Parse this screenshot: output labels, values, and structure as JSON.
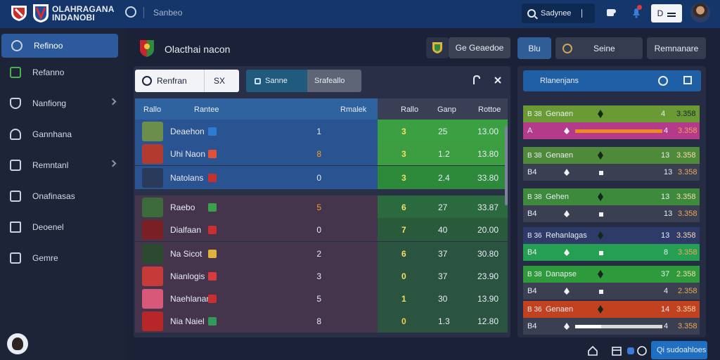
{
  "app": {
    "brand_line1": "OLAHRAGANA",
    "brand_line2": "INDANOBI",
    "search_hint": "Sanbeo",
    "search_label": "Sadynee",
    "user_btn": "D"
  },
  "sidebar": {
    "items": [
      {
        "label": "Refinoo",
        "active": true,
        "icon": "globe-icon"
      },
      {
        "label": "Refanno",
        "icon": "trophy-icon"
      },
      {
        "label": "Nanfiong",
        "icon": "shield-icon",
        "chev": true
      },
      {
        "label": "Gannhana",
        "icon": "person-icon"
      },
      {
        "label": "Remntanl",
        "icon": "document-icon",
        "chev": true
      },
      {
        "label": "Onafinasas",
        "icon": "grid-icon"
      },
      {
        "label": "Deoenel",
        "icon": "building-icon"
      },
      {
        "label": "Gemre",
        "icon": "list-icon"
      }
    ]
  },
  "header": {
    "team_title": "Olacthai nacon",
    "btn_schedule": "Ge Geaedoe",
    "right_btn1": "Blu",
    "right_btn2": "Seine",
    "right_btn3": "Remnanare"
  },
  "panel": {
    "tab1": "Renfran",
    "tab2": "SX",
    "tab3": "Sanne",
    "tab4": "Srafeallo",
    "col_rank": "Rallo",
    "col_name": "Rantee",
    "col_pts": "Rmalek",
    "col_s1": "Rallo",
    "col_s2": "Ganp",
    "col_s3": "Rottoe"
  },
  "players": [
    {
      "name": "Deaehon",
      "num": "1",
      "s1": "3",
      "s2": "25",
      "s3": "13.00"
    },
    {
      "name": "Uhi Naon",
      "num": "8",
      "s1": "3",
      "s2": "1.2",
      "s3": "13.80"
    },
    {
      "name": "Natolans",
      "num": "0",
      "s1": "3",
      "s2": "2.4",
      "s3": "33.80"
    },
    {
      "name": "Raebo",
      "num": "5",
      "s1": "6",
      "s2": "27",
      "s3": "33.87"
    },
    {
      "name": "Dialfaan",
      "num": "0",
      "s1": "7",
      "s2": "40",
      "s3": "20.00"
    },
    {
      "name": "Na Sicot",
      "num": "2",
      "s1": "6",
      "s2": "37",
      "s3": "30.80"
    },
    {
      "name": "Nianlogis",
      "num": "3",
      "s1": "0",
      "s2": "37",
      "s3": "23.90"
    },
    {
      "name": "Naehlanan",
      "num": "5",
      "s1": "1",
      "s2": "30",
      "s3": "13.90"
    },
    {
      "name": "Nia Naiel",
      "num": "8",
      "s1": "0",
      "s2": "1.3",
      "s3": "12.80"
    }
  ],
  "right": {
    "head": "Rlanenjans",
    "groups": [
      {
        "k1": "B 38",
        "k2": "Genaen",
        "n1": "4",
        "n2": "3.358",
        "k3": "A",
        "n3": "4",
        "n4": "3.358",
        "fill": 1.0
      },
      {
        "k1": "B 38",
        "k2": "Genaen",
        "n1": "13",
        "n2": "3.358",
        "k3": "B4",
        "n3": "13",
        "n4": "3.358",
        "fill": 0.0
      },
      {
        "k1": "B 38",
        "k2": "Gehen",
        "n1": "13",
        "n2": "3.358",
        "k3": "B4",
        "n3": "13",
        "n4": "3.358",
        "fill": 0.0
      },
      {
        "k1": "B 36",
        "k2": "Rehanlagas",
        "n1": "13",
        "n2": "3.358",
        "k3": "B4",
        "n3": "8",
        "n4": "3.358",
        "fill": 0.0
      },
      {
        "k1": "B 38",
        "k2": "Danapse",
        "n1": "37",
        "n2": "2.358",
        "k3": "B4",
        "n3": "4",
        "n4": "2.358",
        "fill": 0.0
      },
      {
        "k1": "B 36",
        "k2": "Genaen",
        "n1": "14",
        "n2": "3.358",
        "k3": "B4",
        "n3": "4",
        "n4": "3.358",
        "fill": 0.3
      }
    ]
  },
  "footer": {
    "btn": "Qi sudoahloes"
  }
}
